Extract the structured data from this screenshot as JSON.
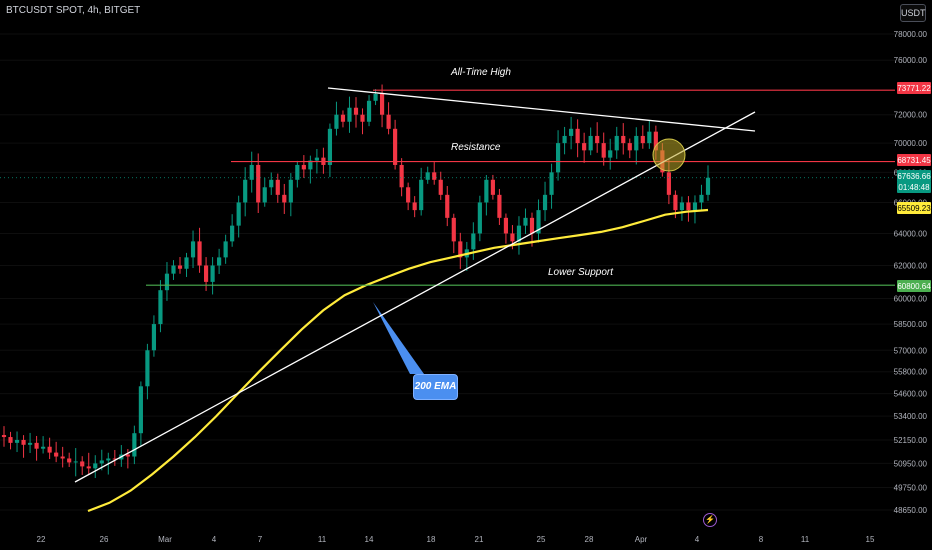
{
  "header": {
    "symbol": "BTCUSDT SPOT, 4h, BITGET",
    "currency": "USDT"
  },
  "annotations": {
    "ath": "All-Time High",
    "resistance": "Resistance",
    "lower_support": "Lower Support",
    "ema_callout": "200 EMA"
  },
  "chart_data": {
    "type": "candlestick",
    "x_tick_labels": [
      "22",
      "26",
      "Mar",
      "4",
      "7",
      "11",
      "14",
      "18",
      "21",
      "25",
      "28",
      "Apr",
      "4",
      "8",
      "11",
      "15"
    ],
    "y_tick_labels": [
      "78000.00",
      "76000.00",
      "72000.00",
      "70000.00",
      "68000.00",
      "66000.00",
      "64000.00",
      "62000.00",
      "60000.00",
      "58500.00",
      "57000.00",
      "55800.00",
      "54600.00",
      "53400.00",
      "52150.00",
      "50950.00",
      "49750.00",
      "48650.00"
    ],
    "y_scale": "log",
    "price_tags": [
      {
        "label": "73771.22",
        "value": 73771.22,
        "color": "#f23645"
      },
      {
        "label": "68731.45",
        "value": 68731.45,
        "color": "#f23645"
      },
      {
        "label": "67636.66",
        "value": 67636.66,
        "color": "#089981"
      },
      {
        "label": "01:48:48",
        "value": null,
        "color": "#089981"
      },
      {
        "label": "65509.23",
        "value": 65509.23,
        "color": "#ffeb3b"
      },
      {
        "label": "60800.64",
        "value": 60800.64,
        "color": "#4caf50"
      }
    ],
    "levels": {
      "all_time_high": 73771.22,
      "resistance": 68731.45,
      "lower_support": 60800.64
    },
    "ohlc_close_approx": [
      52300,
      52000,
      52150,
      51900,
      52000,
      51700,
      51800,
      51500,
      51300,
      51200,
      51000,
      51050,
      50800,
      50700,
      50950,
      51100,
      51200,
      51150,
      51400,
      51300,
      52500,
      55000,
      57000,
      58500,
      60500,
      61500,
      62000,
      61800,
      62500,
      63500,
      62000,
      61000,
      62000,
      62500,
      63500,
      64500,
      66000,
      67500,
      68500,
      66000,
      67000,
      67500,
      66500,
      66000,
      67500,
      68500,
      68200,
      68800,
      69000,
      68500,
      71000,
      72000,
      71500,
      72500,
      72000,
      71500,
      73000,
      73500,
      72000,
      71000,
      68500,
      67000,
      66000,
      65500,
      67500,
      68000,
      67500,
      66500,
      65000,
      63500,
      62500,
      63000,
      64000,
      66000,
      67500,
      66500,
      65000,
      64000,
      63500,
      64500,
      65000,
      64000,
      65500,
      66500,
      68000,
      70000,
      70500,
      71000,
      70000,
      69500,
      70500,
      70000,
      69000,
      69500,
      70500,
      70000,
      69500,
      70500,
      70000,
      70800,
      69500,
      68000,
      66500,
      65500,
      66000,
      65500,
      66000,
      66500,
      67636.66
    ],
    "ema_200_approx": [
      48600,
      49000,
      49600,
      50400,
      51300,
      52300,
      53400,
      54600,
      55800,
      57000,
      58200,
      59300,
      60200,
      60800,
      61300,
      61800,
      62200,
      62500,
      62800,
      63100,
      63300,
      63500,
      63700,
      63900,
      64100,
      64400,
      64800,
      65200,
      65400,
      65509.23
    ],
    "series": [
      {
        "name": "200 EMA",
        "color": "#ffeb3b"
      }
    ]
  }
}
